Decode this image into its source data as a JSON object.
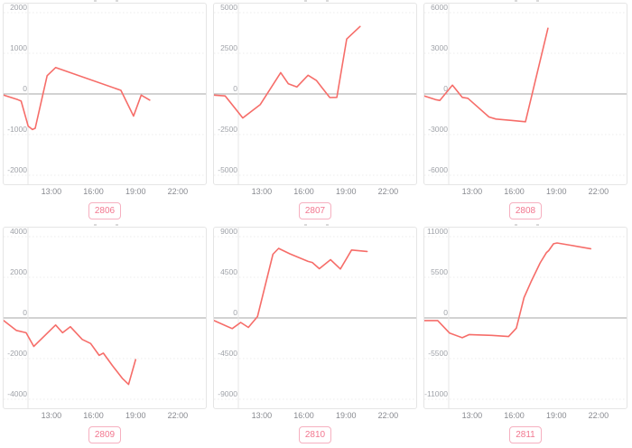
{
  "style": {
    "line_color": "#f66d69",
    "badge_text_color": "#f2778f",
    "badge_border_color": "#f6b0c0",
    "y_label_color": "#a0a3a9",
    "x_label_color": "#87898f",
    "zero_line_color": "#b8b8b8",
    "grid_line_color": "#ededed",
    "panel_border_color": "#e5e5e5",
    "background": "#ffffff"
  },
  "chart_data": [
    {
      "type": "line",
      "title": "2806",
      "x_tick_labels": [
        "13:00",
        "16:00",
        "19:00",
        "22:00"
      ],
      "x_tick_hours": [
        13,
        16,
        19,
        22
      ],
      "x_domain_hours": [
        9.6,
        24.0
      ],
      "ylim": [
        -2000,
        2000
      ],
      "y_ticks": [
        2000,
        1000,
        0,
        -1000,
        -2000
      ],
      "grid": "horizontal-dotted",
      "legend": "none",
      "series": [
        {
          "name": "2806",
          "points_time_value": [
            [
              9.6,
              -30
            ],
            [
              10.6,
              -140
            ],
            [
              10.85,
              -175
            ],
            [
              11.35,
              -790
            ],
            [
              11.65,
              -875
            ],
            [
              11.85,
              -845
            ],
            [
              12.7,
              450
            ],
            [
              13.3,
              650
            ],
            [
              17.95,
              90
            ],
            [
              18.85,
              -545
            ],
            [
              19.4,
              -30
            ],
            [
              20.0,
              -150
            ]
          ]
        }
      ]
    },
    {
      "type": "line",
      "title": "2807",
      "x_tick_labels": [
        "13:00",
        "16:00",
        "19:00",
        "22:00"
      ],
      "x_tick_hours": [
        13,
        16,
        19,
        22
      ],
      "x_domain_hours": [
        9.6,
        24.0
      ],
      "ylim": [
        -5000,
        5000
      ],
      "y_ticks": [
        5000,
        2500,
        0,
        -2500,
        -5000
      ],
      "grid": "horizontal-dotted",
      "legend": "none",
      "series": [
        {
          "name": "2807",
          "points_time_value": [
            [
              9.6,
              -70
            ],
            [
              10.4,
              -120
            ],
            [
              11.65,
              -1480
            ],
            [
              12.9,
              -650
            ],
            [
              14.35,
              1310
            ],
            [
              14.9,
              620
            ],
            [
              15.5,
              430
            ],
            [
              16.3,
              1150
            ],
            [
              16.9,
              820
            ],
            [
              17.3,
              380
            ],
            [
              17.85,
              -220
            ],
            [
              18.35,
              -210
            ],
            [
              19.05,
              3380
            ],
            [
              20.0,
              4150
            ]
          ]
        }
      ]
    },
    {
      "type": "line",
      "title": "2808",
      "x_tick_labels": [
        "13:00",
        "16:00",
        "19:00",
        "22:00"
      ],
      "x_tick_hours": [
        13,
        16,
        19,
        22
      ],
      "x_domain_hours": [
        9.6,
        24.0
      ],
      "ylim": [
        -6000,
        6000
      ],
      "y_ticks": [
        6000,
        3000,
        0,
        -3000,
        -6000
      ],
      "grid": "horizontal-dotted",
      "legend": "none",
      "series": [
        {
          "name": "2808",
          "points_time_value": [
            [
              9.6,
              -150
            ],
            [
              10.4,
              -420
            ],
            [
              10.7,
              -480
            ],
            [
              11.6,
              650
            ],
            [
              12.3,
              -250
            ],
            [
              12.7,
              -320
            ],
            [
              14.2,
              -1700
            ],
            [
              14.7,
              -1850
            ],
            [
              15.8,
              -1950
            ],
            [
              16.8,
              -2050
            ],
            [
              18.4,
              4850
            ]
          ]
        }
      ]
    },
    {
      "type": "line",
      "title": "2809",
      "x_tick_labels": [
        "13:00",
        "16:00",
        "19:00",
        "22:00"
      ],
      "x_tick_hours": [
        13,
        16,
        19,
        22
      ],
      "x_domain_hours": [
        9.6,
        24.0
      ],
      "ylim": [
        -4000,
        4000
      ],
      "y_ticks": [
        4000,
        2000,
        0,
        -2000,
        -4000
      ],
      "grid": "horizontal-dotted",
      "legend": "none",
      "series": [
        {
          "name": "2809",
          "points_time_value": [
            [
              9.6,
              -130
            ],
            [
              10.5,
              -615
            ],
            [
              11.2,
              -730
            ],
            [
              11.75,
              -1400
            ],
            [
              12.0,
              -1230
            ],
            [
              13.3,
              -345
            ],
            [
              13.8,
              -730
            ],
            [
              14.35,
              -430
            ],
            [
              15.2,
              -1060
            ],
            [
              15.8,
              -1260
            ],
            [
              16.4,
              -1840
            ],
            [
              16.7,
              -1730
            ],
            [
              17.35,
              -2350
            ],
            [
              18.05,
              -2970
            ],
            [
              18.5,
              -3270
            ],
            [
              19.0,
              -2050
            ]
          ]
        }
      ]
    },
    {
      "type": "line",
      "title": "2810",
      "x_tick_labels": [
        "13:00",
        "16:00",
        "19:00",
        "22:00"
      ],
      "x_tick_hours": [
        13,
        16,
        19,
        22
      ],
      "x_domain_hours": [
        9.6,
        24.0
      ],
      "ylim": [
        -9000,
        9000
      ],
      "y_ticks": [
        9000,
        4500,
        0,
        -4500,
        -9000
      ],
      "grid": "horizontal-dotted",
      "legend": "none",
      "series": [
        {
          "name": "2810",
          "points_time_value": [
            [
              9.6,
              -290
            ],
            [
              10.9,
              -1180
            ],
            [
              11.5,
              -500
            ],
            [
              12.05,
              -1050
            ],
            [
              12.7,
              150
            ],
            [
              13.8,
              7050
            ],
            [
              14.2,
              7700
            ],
            [
              15.0,
              7100
            ],
            [
              16.3,
              6260
            ],
            [
              16.6,
              6140
            ],
            [
              17.1,
              5450
            ],
            [
              17.9,
              6450
            ],
            [
              18.6,
              5420
            ],
            [
              19.4,
              7520
            ],
            [
              20.5,
              7360
            ]
          ]
        }
      ]
    },
    {
      "type": "line",
      "title": "2811",
      "x_tick_labels": [
        "13:00",
        "16:00",
        "19:00",
        "22:00"
      ],
      "x_tick_hours": [
        13,
        16,
        19,
        22
      ],
      "x_domain_hours": [
        9.6,
        24.0
      ],
      "ylim": [
        -11000,
        11000
      ],
      "y_ticks": [
        11000,
        5500,
        0,
        -5500,
        -11000
      ],
      "grid": "horizontal-dotted",
      "legend": "none",
      "series": [
        {
          "name": "2811",
          "points_time_value": [
            [
              9.6,
              -350
            ],
            [
              10.55,
              -355
            ],
            [
              11.4,
              -2050
            ],
            [
              12.3,
              -2680
            ],
            [
              12.8,
              -2250
            ],
            [
              13.2,
              -2280
            ],
            [
              14.4,
              -2360
            ],
            [
              15.6,
              -2520
            ],
            [
              16.15,
              -1380
            ],
            [
              16.7,
              2750
            ],
            [
              17.2,
              4900
            ],
            [
              17.85,
              7450
            ],
            [
              18.3,
              8850
            ],
            [
              18.45,
              9100
            ],
            [
              18.8,
              10030
            ],
            [
              19.05,
              10150
            ],
            [
              20.0,
              9840
            ],
            [
              21.45,
              9360
            ]
          ]
        }
      ]
    }
  ]
}
